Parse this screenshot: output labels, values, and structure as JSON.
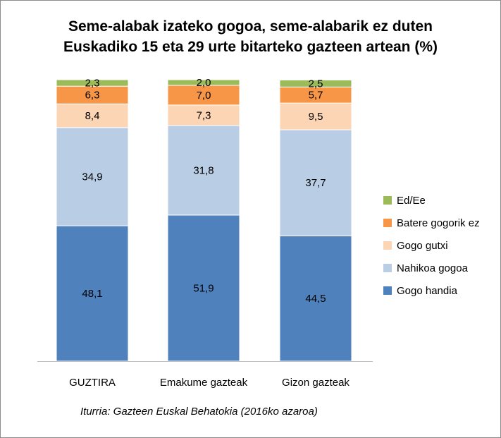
{
  "chart_data": {
    "type": "bar",
    "stacked": true,
    "title": "Seme-alabak izateko gogoa, seme-alabarik ez duten Euskadiko 15 eta 29 urte bitarteko gazteen artean (%)",
    "title_lines": [
      "Seme-alabak izateko gogoa, seme-alabarik ez duten",
      "Euskadiko 15 eta 29 urte bitarteko gazteen artean (%)"
    ],
    "categories": [
      "GUZTIRA",
      "Emakume gazteak",
      "Gizon gazteak"
    ],
    "series": [
      {
        "name": "Gogo handia",
        "values": [
          48.1,
          51.9,
          44.5
        ],
        "labels": [
          "48,1",
          "51,9",
          "44,5"
        ],
        "color": "#4f81bd"
      },
      {
        "name": "Nahikoa gogoa",
        "values": [
          34.9,
          31.8,
          37.7
        ],
        "labels": [
          "34,9",
          "31,8",
          "37,7"
        ],
        "color": "#b9cde5"
      },
      {
        "name": "Gogo gutxi",
        "values": [
          8.4,
          7.3,
          9.5
        ],
        "labels": [
          "8,4",
          "7,3",
          "9,5"
        ],
        "color": "#fcd5b5"
      },
      {
        "name": "Batere gogorik ez",
        "values": [
          6.3,
          7.0,
          5.7
        ],
        "labels": [
          "6,3",
          "7,0",
          "5,7"
        ],
        "color": "#f79646"
      },
      {
        "name": "Ed/Ee",
        "values": [
          2.3,
          2.0,
          2.5
        ],
        "labels": [
          "2,3",
          "2,0",
          "2,5"
        ],
        "color": "#9bbb59"
      }
    ],
    "ylim": [
      0,
      100
    ],
    "xlabel": "",
    "ylabel": "",
    "grid": false,
    "legend": "right",
    "source": "Iturria: Gazteen Euskal Behatokia (2016ko azaroa)"
  }
}
